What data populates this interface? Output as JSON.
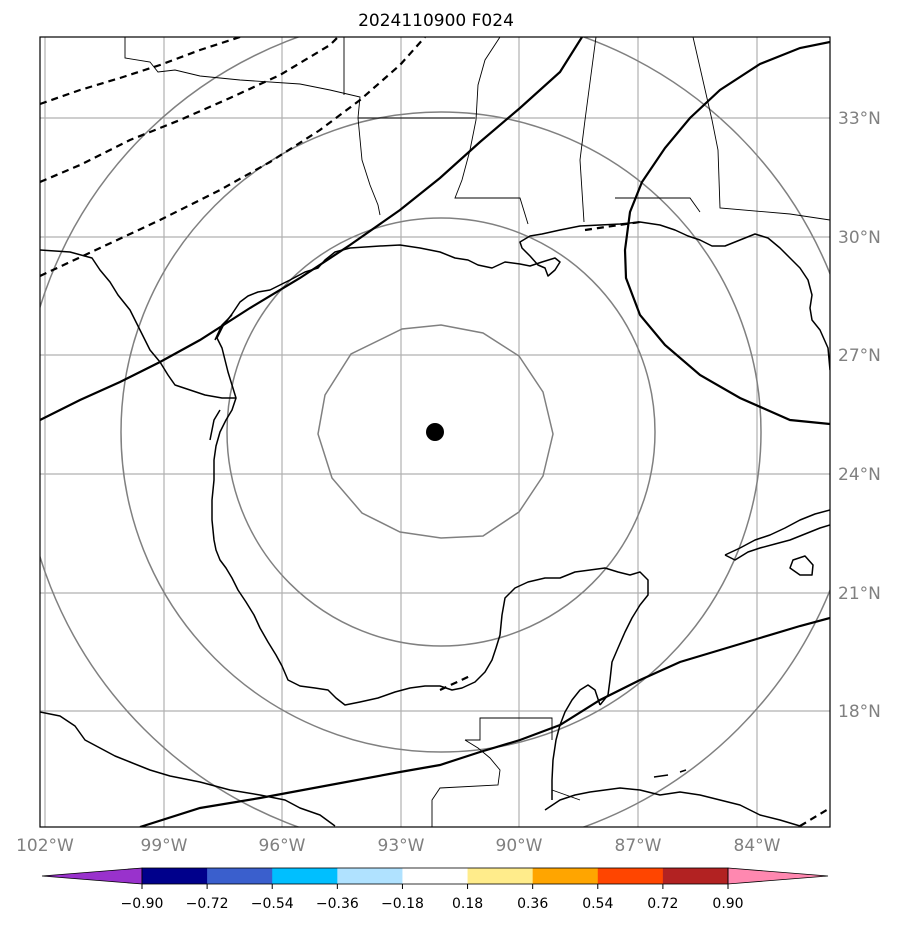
{
  "title": "2024110900 F024",
  "lon_labels": [
    "102°W",
    "99°W",
    "96°W",
    "93°W",
    "90°W",
    "87°W",
    "84°W"
  ],
  "lat_labels": [
    "33°N",
    "30°N",
    "27°N",
    "24°N",
    "21°N",
    "18°N"
  ],
  "colorbar": {
    "ticks": [
      "−0.90",
      "−0.72",
      "−0.54",
      "−0.36",
      "−0.18",
      "0.18",
      "0.36",
      "0.54",
      "0.72",
      "0.90"
    ],
    "colors": [
      "#9932cc",
      "#00008b",
      "#3a5fcd",
      "#00bfff",
      "#b0e2ff",
      "#ffffff",
      "#ffec8b",
      "#ffa500",
      "#ff4500",
      "#b22222",
      "#ff88b0"
    ]
  },
  "storm_center": {
    "lon": -92.2,
    "lat": 25.1
  }
}
